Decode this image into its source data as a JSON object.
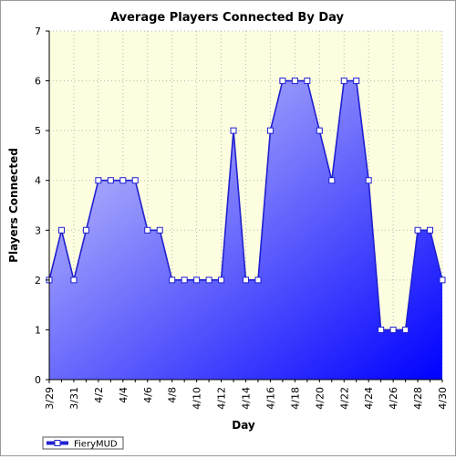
{
  "chart_data": {
    "type": "area",
    "title": "Average Players Connected By Day",
    "xlabel": "Day",
    "ylabel": "Players Connected",
    "categories": [
      "3/29",
      "3/30",
      "3/31",
      "4/1",
      "4/2",
      "4/3",
      "4/4",
      "4/5",
      "4/6",
      "4/7",
      "4/8",
      "4/9",
      "4/10",
      "4/11",
      "4/12",
      "4/13",
      "4/14",
      "4/15",
      "4/16",
      "4/17",
      "4/18",
      "4/19",
      "4/20",
      "4/21",
      "4/22",
      "4/23",
      "4/24",
      "4/25",
      "4/26",
      "4/27",
      "4/28",
      "4/29",
      "4/30"
    ],
    "xtick_labels": [
      "3/29",
      "3/31",
      "4/2",
      "4/4",
      "4/6",
      "4/8",
      "4/10",
      "4/12",
      "4/14",
      "4/16",
      "4/18",
      "4/20",
      "4/22",
      "4/24",
      "4/26",
      "4/28",
      "4/30"
    ],
    "series": [
      {
        "name": "FieryMUD",
        "values": [
          2,
          3,
          2,
          3,
          4,
          4,
          4,
          4,
          3,
          3,
          2,
          2,
          2,
          2,
          2,
          5,
          2,
          2,
          5,
          6,
          6,
          6,
          5,
          4,
          6,
          6,
          4,
          1,
          1,
          1,
          3,
          3,
          2
        ]
      }
    ],
    "ylim": [
      0,
      7
    ],
    "yticks": [
      0,
      1,
      2,
      3,
      4,
      5,
      6,
      7
    ],
    "grid": true,
    "legend_position": "bottom-left",
    "colors": {
      "plot_background": "#fdfde0",
      "line": "#2020d0",
      "area_top": "#d4d4fa",
      "area_bottom": "#0000ff",
      "grid": "#b8b8b8"
    }
  }
}
